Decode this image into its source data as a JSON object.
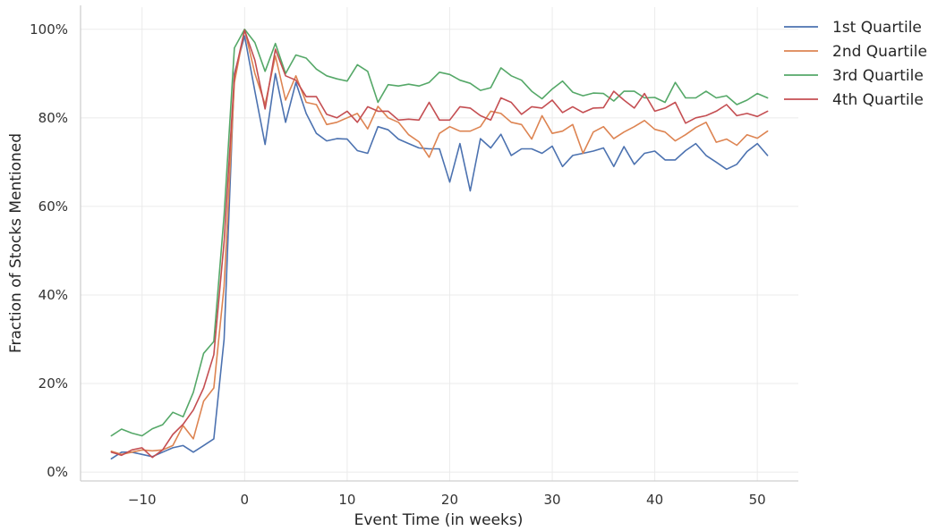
{
  "chart_data": {
    "type": "line",
    "title": "",
    "xlabel": "Event Time (in weeks)",
    "ylabel": "Fraction of Stocks Mentioned",
    "xlim": [
      -16,
      54
    ],
    "ylim": [
      -0.02,
      1.05
    ],
    "x_ticks": [
      -10,
      0,
      10,
      20,
      30,
      40,
      50
    ],
    "x_tick_labels": [
      "−10",
      "0",
      "10",
      "20",
      "30",
      "40",
      "50"
    ],
    "y_ticks": [
      0,
      0.2,
      0.4,
      0.6,
      0.8,
      1.0
    ],
    "y_tick_labels": [
      "0%",
      "20%",
      "40%",
      "60%",
      "80%",
      "100%"
    ],
    "grid": true,
    "legend_position": "top-right",
    "x": [
      -13,
      -12,
      -11,
      -10,
      -9,
      -8,
      -7,
      -6,
      -5,
      -4,
      -3,
      -2,
      -1,
      0,
      1,
      2,
      3,
      4,
      5,
      6,
      7,
      8,
      9,
      10,
      11,
      12,
      13,
      14,
      15,
      16,
      17,
      18,
      19,
      20,
      21,
      22,
      23,
      24,
      25,
      26,
      27,
      28,
      29,
      30,
      31,
      32,
      33,
      34,
      35,
      36,
      37,
      38,
      39,
      40,
      41,
      42,
      43,
      44,
      45,
      46,
      47,
      48,
      49,
      50,
      51
    ],
    "series": [
      {
        "name": "1st Quartile",
        "color": "#4c72b0",
        "values": [
          0.03,
          0.045,
          0.045,
          0.04,
          0.035,
          0.045,
          0.055,
          0.06,
          0.045,
          0.06,
          0.075,
          0.3,
          0.9,
          0.985,
          0.86,
          0.74,
          0.9,
          0.79,
          0.88,
          0.81,
          0.765,
          0.748,
          0.753,
          0.752,
          0.726,
          0.72,
          0.78,
          0.773,
          0.752,
          0.742,
          0.732,
          0.73,
          0.73,
          0.655,
          0.742,
          0.635,
          0.753,
          0.732,
          0.763,
          0.715,
          0.73,
          0.73,
          0.72,
          0.736,
          0.69,
          0.715,
          0.72,
          0.725,
          0.732,
          0.69,
          0.735,
          0.695,
          0.72,
          0.725,
          0.705,
          0.705,
          0.726,
          0.742,
          0.715,
          0.7,
          0.684,
          0.695,
          0.724,
          0.742,
          0.715
        ]
      },
      {
        "name": "2nd Quartile",
        "color": "#dd8452",
        "values": [
          0.047,
          0.04,
          0.045,
          0.05,
          0.048,
          0.05,
          0.06,
          0.105,
          0.075,
          0.16,
          0.19,
          0.42,
          0.88,
          1.0,
          0.9,
          0.83,
          0.94,
          0.84,
          0.895,
          0.835,
          0.83,
          0.785,
          0.79,
          0.8,
          0.81,
          0.775,
          0.826,
          0.8,
          0.79,
          0.762,
          0.746,
          0.711,
          0.765,
          0.78,
          0.77,
          0.77,
          0.78,
          0.815,
          0.81,
          0.79,
          0.785,
          0.752,
          0.805,
          0.765,
          0.77,
          0.785,
          0.72,
          0.768,
          0.78,
          0.753,
          0.768,
          0.78,
          0.794,
          0.774,
          0.768,
          0.748,
          0.762,
          0.778,
          0.79,
          0.745,
          0.752,
          0.738,
          0.762,
          0.754,
          0.77
        ]
      },
      {
        "name": "3rd Quartile",
        "color": "#55a868",
        "values": [
          0.082,
          0.097,
          0.088,
          0.082,
          0.098,
          0.107,
          0.135,
          0.125,
          0.18,
          0.268,
          0.295,
          0.58,
          0.958,
          1.0,
          0.97,
          0.905,
          0.968,
          0.9,
          0.942,
          0.935,
          0.91,
          0.895,
          0.888,
          0.883,
          0.92,
          0.905,
          0.835,
          0.875,
          0.872,
          0.876,
          0.872,
          0.88,
          0.903,
          0.898,
          0.885,
          0.878,
          0.862,
          0.868,
          0.913,
          0.895,
          0.885,
          0.86,
          0.843,
          0.865,
          0.883,
          0.858,
          0.85,
          0.856,
          0.855,
          0.838,
          0.86,
          0.86,
          0.845,
          0.846,
          0.835,
          0.88,
          0.845,
          0.845,
          0.86,
          0.845,
          0.85,
          0.83,
          0.84,
          0.855,
          0.845
        ]
      },
      {
        "name": "4th Quartile",
        "color": "#c44e52",
        "values": [
          0.045,
          0.038,
          0.05,
          0.055,
          0.033,
          0.05,
          0.085,
          0.108,
          0.14,
          0.19,
          0.265,
          0.52,
          0.895,
          0.998,
          0.93,
          0.82,
          0.955,
          0.895,
          0.885,
          0.848,
          0.848,
          0.808,
          0.8,
          0.815,
          0.79,
          0.825,
          0.815,
          0.815,
          0.795,
          0.797,
          0.795,
          0.835,
          0.795,
          0.795,
          0.825,
          0.822,
          0.805,
          0.795,
          0.845,
          0.835,
          0.808,
          0.825,
          0.822,
          0.84,
          0.812,
          0.825,
          0.812,
          0.822,
          0.823,
          0.86,
          0.84,
          0.822,
          0.855,
          0.815,
          0.822,
          0.835,
          0.788,
          0.8,
          0.805,
          0.815,
          0.83,
          0.805,
          0.81,
          0.803,
          0.815
        ]
      }
    ]
  }
}
